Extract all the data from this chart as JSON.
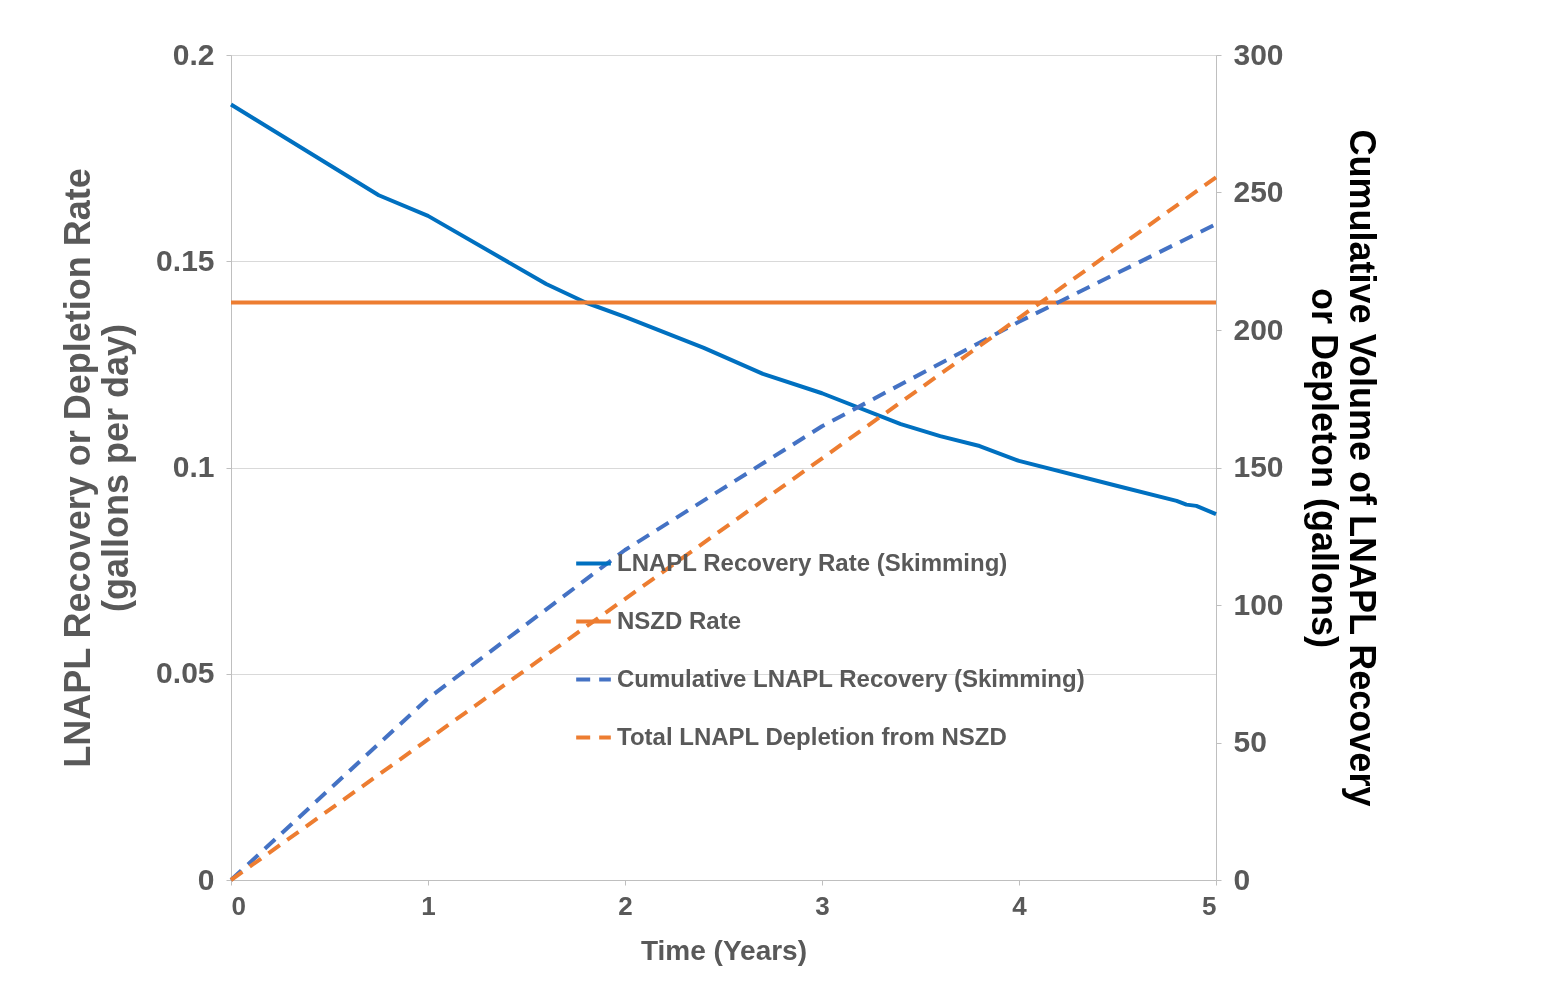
{
  "chart_data": {
    "type": "line",
    "xlabel": "Time (Years)",
    "ylabel": "LNAPL Recovery or Depletion Rate (gallons per day)",
    "y2label": "Cumulative Volume of LNAPL Recovery or Depleton (gallons)",
    "xlim": [
      0,
      5
    ],
    "xticks": [
      0,
      1,
      2,
      3,
      4,
      5
    ],
    "ylim": [
      0,
      0.2
    ],
    "yticks": [
      0,
      0.05,
      0.1,
      0.15,
      0.2
    ],
    "y2lim": [
      0,
      300
    ],
    "y2ticks": [
      0,
      50,
      100,
      150,
      200,
      250,
      300
    ],
    "grid": "y",
    "legend": "bottom",
    "marker": "none",
    "series": [
      {
        "name": "LNAPL Recovery Rate (Skimming)",
        "color": "#0070c0",
        "line_style": "solid",
        "x": [
          0,
          0.75,
          1,
          1.6,
          1.8,
          2,
          2.4,
          2.7,
          3,
          3.4,
          3.6,
          3.8,
          4,
          4.5,
          4.8,
          4.85,
          4.9,
          5
        ],
        "values": [
          0.188,
          0.166,
          0.161,
          0.1445,
          0.14,
          0.1365,
          0.129,
          0.1227,
          0.118,
          0.1105,
          0.1076,
          0.1052,
          0.1016,
          0.0955,
          0.0919,
          0.091,
          0.0907,
          0.0887
        ]
      },
      {
        "name": "NSZD Rate",
        "color": "#ed7d31",
        "line_style": "solid",
        "x": [
          0,
          5
        ],
        "values": [
          0.14,
          0.14
        ]
      },
      {
        "name": "Cumulative LNAPL Recovery (Skimming)",
        "color": "#4472c4",
        "line_style": "dashed",
        "axis": "y2",
        "x": [
          0,
          1,
          2,
          3,
          4,
          5
        ],
        "values": [
          0,
          66,
          120,
          165,
          203,
          238.5
        ]
      },
      {
        "name": "Total LNAPL Depletion from NSZD",
        "color": "#ed7d31",
        "line_style": "dashed",
        "axis": "y2",
        "x": [
          0,
          5
        ],
        "values": [
          0,
          255.5
        ]
      }
    ]
  }
}
